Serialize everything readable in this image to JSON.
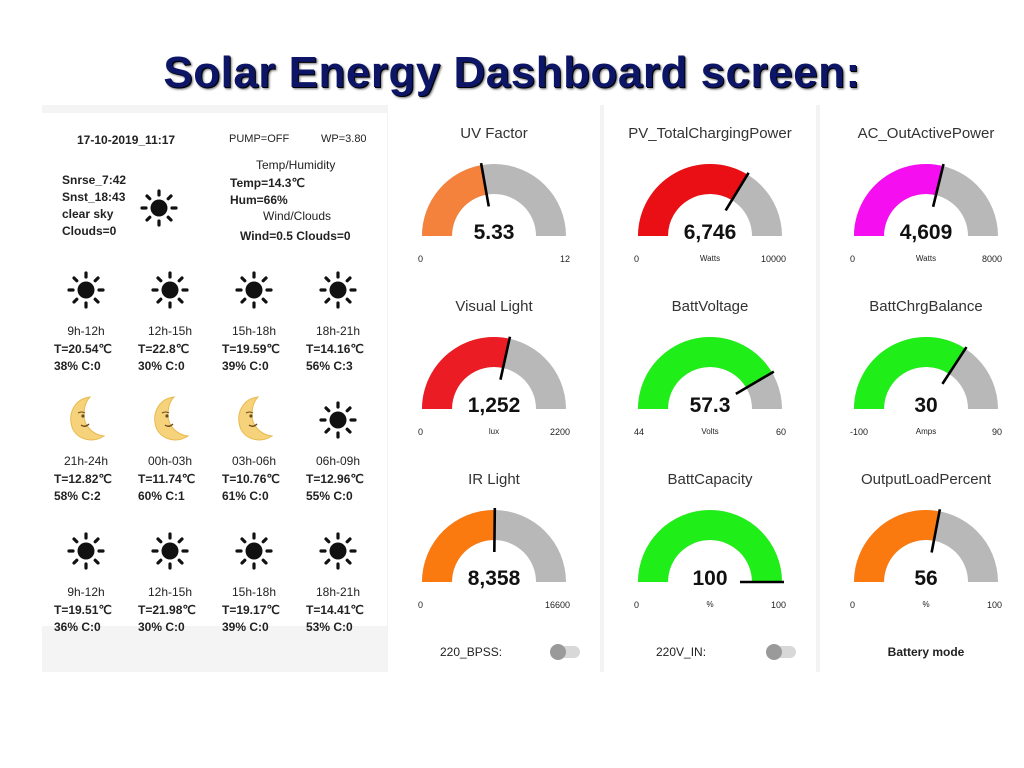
{
  "title": "Solar Energy Dashboard screen:",
  "weather": {
    "datetime": "17-10-2019_11:17",
    "pump": "PUMP=OFF",
    "wp": "WP=3.80",
    "sunrise": "Snrse_7:42",
    "sunset": "Snst_18:43",
    "condition": "clear sky",
    "clouds": "Clouds=0",
    "current_icon": "sun-icon",
    "temp_hum_title": "Temp/Humidity",
    "temp": "Temp=14.3℃",
    "hum": "Hum=66%",
    "wind_clouds_title": "Wind/Clouds",
    "wind_clouds": "Wind=0.5 Clouds=0",
    "forecast": [
      {
        "icon": "sun-icon",
        "time": "9h-12h",
        "temp": "T=20.54℃",
        "hum": "38% C:0"
      },
      {
        "icon": "sun-icon",
        "time": "12h-15h",
        "temp": "T=22.8℃",
        "hum": "30% C:0"
      },
      {
        "icon": "sun-icon",
        "time": "15h-18h",
        "temp": "T=19.59℃",
        "hum": "39% C:0"
      },
      {
        "icon": "sun-icon",
        "time": "18h-21h",
        "temp": "T=14.16℃",
        "hum": "56% C:3"
      },
      {
        "icon": "moon-icon",
        "time": "21h-24h",
        "temp": "T=12.82℃",
        "hum": "58% C:2"
      },
      {
        "icon": "moon-icon",
        "time": "00h-03h",
        "temp": "T=11.74℃",
        "hum": "60% C:1"
      },
      {
        "icon": "moon-icon",
        "time": "03h-06h",
        "temp": "T=10.76℃",
        "hum": "61% C:0"
      },
      {
        "icon": "sun-icon",
        "time": "06h-09h",
        "temp": "T=12.96℃",
        "hum": "55% C:0"
      },
      {
        "icon": "sun-icon",
        "time": "9h-12h",
        "temp": "T=19.51℃",
        "hum": "36% C:0"
      },
      {
        "icon": "sun-icon",
        "time": "12h-15h",
        "temp": "T=21.98℃",
        "hum": "30% C:0"
      },
      {
        "icon": "sun-icon",
        "time": "15h-18h",
        "temp": "T=19.17℃",
        "hum": "39% C:0"
      },
      {
        "icon": "sun-icon",
        "time": "18h-21h",
        "temp": "T=14.41℃",
        "hum": "53% C:0"
      }
    ]
  },
  "gauges": [
    {
      "title": "UV Factor",
      "value": 5.33,
      "display": "5.33",
      "min": 0,
      "max": 12,
      "min_label": "0",
      "max_label": "12",
      "unit": "",
      "color": "#f5823c"
    },
    {
      "title": "Visual Light",
      "value": 1252,
      "display": "1,252",
      "min": 0,
      "max": 2200,
      "min_label": "0",
      "max_label": "2200",
      "unit": "lux",
      "color": "#ec1c24"
    },
    {
      "title": "IR Light",
      "value": 8358,
      "display": "8,358",
      "min": 0,
      "max": 16600,
      "min_label": "0",
      "max_label": "16600",
      "unit": "",
      "color": "#fb7a10"
    },
    {
      "title": "PV_TotalChargingPower",
      "value": 6746,
      "display": "6,746",
      "min": 0,
      "max": 10000,
      "min_label": "0",
      "max_label": "10000",
      "unit": "Watts",
      "color": "#ea0f14"
    },
    {
      "title": "BattVoltage",
      "value": 57.3,
      "display": "57.3",
      "min": 44,
      "max": 60,
      "min_label": "44",
      "max_label": "60",
      "unit": "Volts",
      "color": "#20ee18"
    },
    {
      "title": "BattCapacity",
      "value": 100,
      "display": "100",
      "min": 0,
      "max": 100,
      "min_label": "0",
      "max_label": "100",
      "unit": "%",
      "color": "#20ee18"
    },
    {
      "title": "AC_OutActivePower",
      "value": 4609,
      "display": "4,609",
      "min": 0,
      "max": 8000,
      "min_label": "0",
      "max_label": "8000",
      "unit": "Watts",
      "color": "#f50ff0"
    },
    {
      "title": "BattChrgBalance",
      "value": 30,
      "display": "30",
      "min": -100,
      "max": 90,
      "min_label": "-100",
      "max_label": "90",
      "unit": "Amps",
      "color": "#20ee18"
    },
    {
      "title": "OutputLoadPercent",
      "value": 56,
      "display": "56",
      "min": 0,
      "max": 100,
      "min_label": "0",
      "max_label": "100",
      "unit": "%",
      "color": "#fb7a10"
    }
  ],
  "bottom": {
    "switch1_label": "220_BPSS:",
    "switch1_on": false,
    "switch2_label": "220V_IN:",
    "switch2_on": false,
    "mode": "Battery mode"
  },
  "colors": {
    "track": "#b8b8b8",
    "title": "#0d1566"
  }
}
